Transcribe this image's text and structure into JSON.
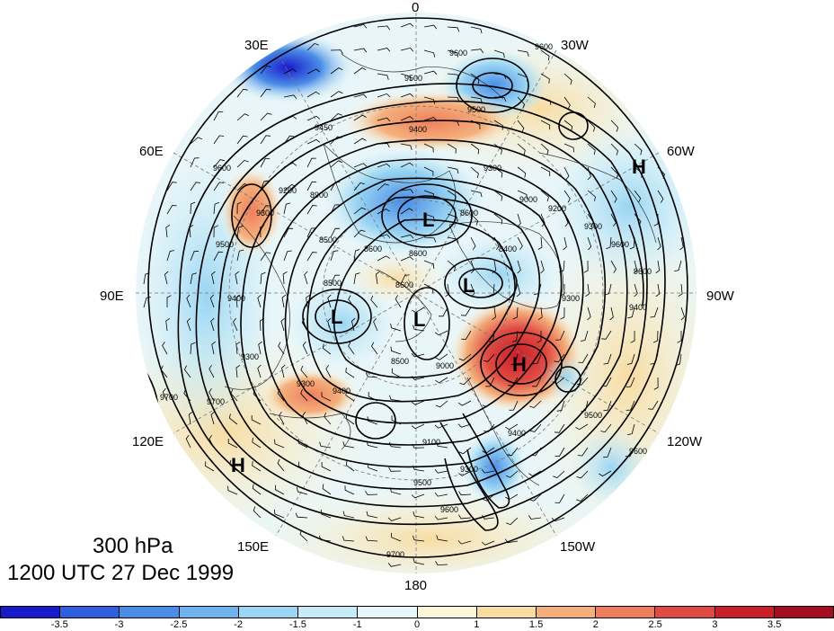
{
  "title": {
    "level": "300 hPa",
    "datetime": "1200 UTC 27 Dec 1999"
  },
  "longitude_labels": [
    "0",
    "30W",
    "60W",
    "90W",
    "120W",
    "150W",
    "180",
    "150E",
    "120E",
    "90E",
    "60E",
    "30E"
  ],
  "pressure_centers": [
    {
      "label": "H",
      "lon": "55W",
      "note": "high"
    },
    {
      "label": "L",
      "note": "low near pole"
    },
    {
      "label": "L",
      "note": "low over Canada"
    },
    {
      "label": "L",
      "note": "low over Siberia"
    },
    {
      "label": "L",
      "note": "low near pole (Pacific side)"
    },
    {
      "label": "H",
      "note": "high over eastern Pacific/Alaska"
    },
    {
      "label": "H",
      "note": "high over China"
    }
  ],
  "contour_labels": [
    "9600",
    "9500",
    "9450",
    "9500",
    "9400",
    "9300",
    "9200",
    "9000",
    "8900",
    "8600",
    "8600",
    "8500",
    "9600",
    "9300",
    "9500",
    "9300",
    "8500",
    "8600",
    "8400",
    "8600",
    "9400",
    "9300",
    "9700",
    "9700",
    "9300",
    "9400",
    "9000",
    "9200",
    "9100",
    "8500",
    "9400",
    "9300",
    "9500",
    "9600",
    "9700",
    "9600",
    "9500",
    "9600",
    "9300",
    "9400",
    "9600",
    "9600"
  ],
  "colorbar": {
    "ticks": [
      "-3.5",
      "-3",
      "-2.5",
      "-2",
      "-1.5",
      "-1",
      "0",
      "1",
      "1.5",
      "2",
      "2.5",
      "3",
      "3.5"
    ],
    "colors": [
      "#1a1acd",
      "#2f5fdc",
      "#4a8de6",
      "#6fb3ee",
      "#9ad5f3",
      "#c6ecf8",
      "#e6f6fa",
      "#fbf6d9",
      "#f8dca1",
      "#f4b07c",
      "#ef7f5c",
      "#e04a42",
      "#c91f2a",
      "#a30f20"
    ]
  },
  "anomaly_field": {
    "blobs": [
      {
        "sign": "neg",
        "strength": 3.5,
        "loc": "30E upper-left"
      },
      {
        "sign": "neg",
        "strength": 2.0,
        "loc": "north Atlantic near 30W"
      },
      {
        "sign": "pos",
        "strength": 2.0,
        "loc": "between 0 and 30W"
      },
      {
        "sign": "pos",
        "strength": 2.0,
        "loc": "60E"
      },
      {
        "sign": "neg",
        "strength": 1.8,
        "loc": "near pole L"
      },
      {
        "sign": "neg",
        "strength": 1.5,
        "loc": "Canada low"
      },
      {
        "sign": "pos",
        "strength": 3.5,
        "loc": "eastern Pacific H"
      },
      {
        "sign": "neg",
        "strength": 2.5,
        "loc": "near 150W south"
      },
      {
        "sign": "pos",
        "strength": 2.0,
        "loc": "near 120E-150E"
      },
      {
        "sign": "neg",
        "strength": 1.0,
        "loc": "Siberia"
      }
    ]
  }
}
